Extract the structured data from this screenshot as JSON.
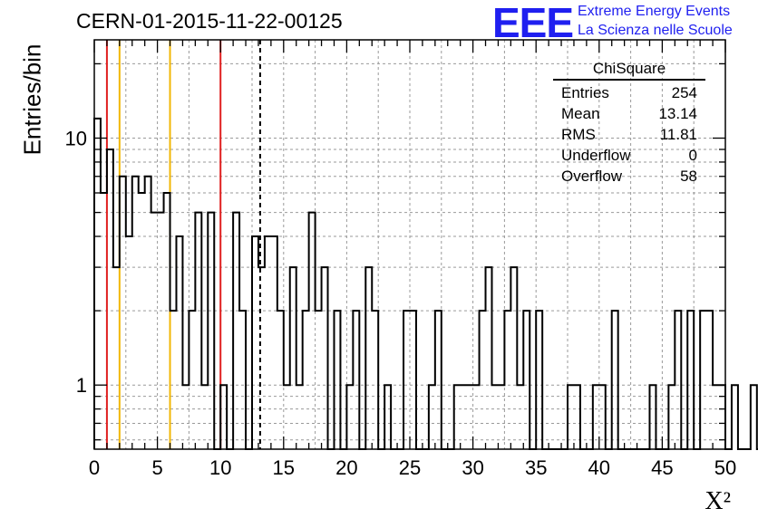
{
  "header": {
    "title": "CERN-01-2015-11-22-00125",
    "logo_text": "EEE",
    "logo_line1": "Extreme Energy Events",
    "logo_line2": "La Scienza nelle Scuole"
  },
  "stats": {
    "title": "ChiSquare",
    "rows": [
      {
        "label": "Entries",
        "value": "254"
      },
      {
        "label": "Mean",
        "value": "13.14"
      },
      {
        "label": "RMS",
        "value": "11.81"
      },
      {
        "label": "Underflow",
        "value": "0"
      },
      {
        "label": "Overflow",
        "value": "58"
      }
    ]
  },
  "colors": {
    "histogram": "#000000",
    "grid": "#9a9a9a",
    "red_marker": "#e02020",
    "yellow_marker": "#f2b705",
    "mean_marker": "#000000",
    "logo": "#1f1ff0"
  },
  "chart_data": {
    "type": "histogram",
    "title": "CERN-01-2015-11-22-00125",
    "xlabel": "X²",
    "ylabel": "Entries/bin",
    "xlim": [
      0,
      50
    ],
    "ylim": [
      0.55,
      25
    ],
    "yscale": "log",
    "grid": true,
    "bin_width": 0.5,
    "x_ticks": [
      0,
      5,
      10,
      15,
      20,
      25,
      30,
      35,
      40,
      45,
      50
    ],
    "y_ticks": [
      1,
      10
    ],
    "counts": [
      12,
      6,
      9,
      3,
      7,
      4,
      7,
      6,
      7,
      5,
      5,
      6,
      2,
      4,
      1,
      2,
      5,
      1,
      5,
      0,
      1,
      0,
      5,
      2,
      0,
      4,
      3,
      4,
      4,
      2,
      1,
      3,
      1,
      2,
      5,
      2,
      3,
      0,
      2,
      0,
      1,
      2,
      0,
      3,
      2,
      0,
      1,
      0,
      0,
      2,
      2,
      0,
      0,
      1,
      2,
      0,
      0,
      1,
      1,
      1,
      1,
      2,
      3,
      1,
      1,
      2,
      3,
      1,
      2,
      0,
      2,
      0,
      0,
      0,
      0,
      1,
      1,
      0,
      0,
      1,
      1,
      0,
      2,
      0,
      0,
      0,
      0,
      0,
      1,
      0,
      0,
      1,
      2,
      0,
      2,
      0,
      2,
      2,
      1,
      1,
      0,
      1,
      0,
      0,
      1,
      0,
      0,
      0,
      0,
      0,
      0,
      0,
      0,
      0,
      0,
      0,
      0,
      0,
      0,
      0,
      0,
      0,
      0,
      0,
      0,
      0,
      0,
      0,
      0,
      0,
      0,
      0,
      0,
      0,
      0,
      0,
      0,
      0,
      0,
      0,
      0,
      0,
      0,
      0,
      0,
      0,
      0,
      0,
      0,
      0
    ],
    "markers": [
      {
        "x": 1,
        "color": "red",
        "style": "solid"
      },
      {
        "x": 2,
        "color": "yellow",
        "style": "solid"
      },
      {
        "x": 6,
        "color": "yellow",
        "style": "solid"
      },
      {
        "x": 10,
        "color": "red",
        "style": "solid"
      },
      {
        "x": 13.14,
        "color": "black",
        "style": "dashed"
      }
    ],
    "stats_placement": "top-right"
  }
}
